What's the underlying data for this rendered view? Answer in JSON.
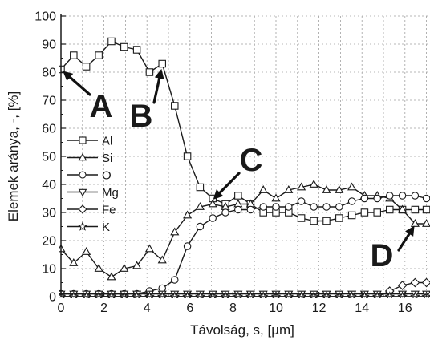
{
  "chart_data": {
    "type": "line",
    "xlabel": "Távolság, s, [µm]",
    "ylabel": "Elemek aránya, -, [%]",
    "xlim": [
      0,
      17
    ],
    "ylim": [
      0,
      100
    ],
    "xticks": [
      0,
      2,
      4,
      6,
      8,
      10,
      12,
      14,
      16
    ],
    "yticks": [
      0,
      10,
      20,
      30,
      40,
      50,
      60,
      70,
      80,
      90,
      100
    ],
    "grid": true,
    "legend_position": "left-middle",
    "x": [
      0,
      0.59,
      1.18,
      1.76,
      2.35,
      2.94,
      3.53,
      4.12,
      4.71,
      5.29,
      5.88,
      6.47,
      7.06,
      7.65,
      8.24,
      8.82,
      9.41,
      10.0,
      10.59,
      11.18,
      11.76,
      12.35,
      12.94,
      13.53,
      14.12,
      14.71,
      15.29,
      15.88,
      16.47,
      17.0
    ],
    "series": [
      {
        "name": "Al",
        "marker": "square",
        "values": [
          81,
          86,
          82,
          86,
          91,
          89,
          88,
          80,
          83,
          68,
          50,
          39,
          35,
          33,
          36,
          33,
          30,
          30,
          30,
          28,
          27,
          27,
          28,
          29,
          30,
          30,
          31,
          31,
          31,
          31
        ]
      },
      {
        "name": "Si",
        "marker": "triangle-up",
        "values": [
          17,
          12,
          16,
          10,
          7,
          10,
          11,
          17,
          13,
          23,
          29,
          32,
          33,
          32,
          33,
          33,
          38,
          35,
          38,
          39,
          40,
          38,
          38,
          39,
          36,
          36,
          35,
          31,
          26,
          26
        ]
      },
      {
        "name": "O",
        "marker": "circle",
        "values": [
          1,
          1,
          1,
          1,
          1,
          1,
          1,
          2,
          3,
          6,
          18,
          25,
          28,
          30,
          31,
          31,
          32,
          32,
          32,
          34,
          32,
          32,
          32,
          34,
          35,
          35,
          36,
          36,
          36,
          35
        ]
      },
      {
        "name": "Mg",
        "marker": "triangle-down",
        "values": [
          1,
          1,
          1,
          1,
          1,
          1,
          1,
          1,
          1,
          1,
          1,
          1,
          1,
          1,
          1,
          1,
          1,
          1,
          1,
          1,
          1,
          1,
          1,
          1,
          1,
          1,
          1,
          1,
          1,
          1
        ]
      },
      {
        "name": "Fe",
        "marker": "diamond",
        "values": [
          0,
          0,
          0,
          0,
          0,
          0,
          0,
          0,
          0,
          0,
          0,
          0,
          0,
          0,
          0,
          0,
          0,
          0,
          0,
          0,
          0,
          0,
          0,
          0,
          0,
          0,
          2,
          4,
          5,
          5
        ]
      },
      {
        "name": "K",
        "marker": "star",
        "values": [
          0,
          0,
          0,
          0,
          0,
          0,
          0,
          0,
          0,
          0,
          0,
          0,
          0,
          0,
          0,
          0,
          0,
          0,
          0,
          0,
          0,
          0,
          0,
          0,
          0,
          0,
          0,
          0,
          0,
          0
        ]
      }
    ],
    "annotations": [
      {
        "label": "A",
        "target": [
          0,
          81
        ]
      },
      {
        "label": "B",
        "target": [
          4.7,
          82
        ]
      },
      {
        "label": "C",
        "target": [
          7.0,
          34
        ]
      },
      {
        "label": "D",
        "target": [
          16.5,
          26
        ]
      }
    ],
    "colors": {
      "line": "#1a1a1a",
      "grid": "#a0a0a0",
      "marker_fill": "#ffffff"
    }
  }
}
